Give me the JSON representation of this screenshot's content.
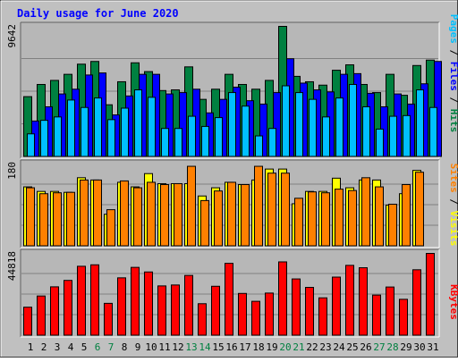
{
  "chart_data": {
    "type": "bar",
    "title": "Daily usage for June 2020",
    "categories": [
      "1",
      "2",
      "3",
      "4",
      "5",
      "6",
      "7",
      "8",
      "9",
      "10",
      "11",
      "12",
      "13",
      "14",
      "15",
      "16",
      "17",
      "18",
      "19",
      "20",
      "21",
      "22",
      "23",
      "24",
      "25",
      "26",
      "27",
      "28",
      "29",
      "30",
      "31"
    ],
    "weekend_days": [
      "6",
      "7",
      "13",
      "14",
      "20",
      "21",
      "27",
      "28"
    ],
    "panels": [
      {
        "id": "hits",
        "y_max_label": "9642",
        "ylim": [
          0,
          9642
        ],
        "series": [
          {
            "name": "Hits",
            "color": "#008040",
            "values": [
              4450,
              5350,
              5650,
              6100,
              6850,
              7050,
              3850,
              5550,
              6950,
              6300,
              4900,
              4950,
              6650,
              4250,
              5000,
              6100,
              5350,
              5000,
              5650,
              9642,
              5950,
              5550,
              5300,
              6400,
              6800,
              5350,
              4750,
              6100,
              4550,
              6750,
              7150
            ]
          },
          {
            "name": "Files",
            "color": "#0000ff",
            "values": [
              2650,
              3700,
              4650,
              5000,
              6050,
              6200,
              3100,
              4500,
              6100,
              6100,
              4650,
              4750,
              5000,
              3250,
              4250,
              5150,
              4150,
              3900,
              4750,
              7250,
              5450,
              4950,
              4800,
              6100,
              6150,
              4700,
              3700,
              4650,
              3900,
              5400,
              7050
            ]
          },
          {
            "name": "Pages",
            "color": "#00c0ff",
            "values": [
              1700,
              2700,
              2950,
              4200,
              3650,
              4350,
              2750,
              3600,
              4950,
              4400,
              2100,
              2100,
              3000,
              2250,
              2900,
              4750,
              3750,
              1550,
              2100,
              5250,
              4750,
              4250,
              2950,
              4350,
              5350,
              3700,
              2050,
              3000,
              3050,
              4950,
              3650
            ]
          }
        ]
      },
      {
        "id": "visits",
        "y_max_label": "180",
        "ylim": [
          0,
          180
        ],
        "series": [
          {
            "name": "Visits",
            "color": "#ffff00",
            "values": [
              130,
              120,
              120,
              118,
              150,
              145,
              70,
              140,
              130,
              159,
              137,
              137,
              137,
              110,
              128,
              140,
              135,
              145,
              169,
              169,
              93,
              120,
              120,
              149,
              128,
              145,
              145,
              90,
              115,
              166,
              0
            ]
          },
          {
            "name": "Sites",
            "color": "#ff8000",
            "values": [
              128,
              115,
              117,
              118,
              145,
              145,
              80,
              143,
              128,
              140,
              135,
              137,
              175,
              100,
              121,
              140,
              135,
              175,
              160,
              160,
              105,
              119,
              117,
              125,
              122,
              150,
              130,
              92,
              135,
              162,
              0
            ]
          }
        ]
      },
      {
        "id": "kbytes",
        "y_max_label": "44818",
        "ylim": [
          0,
          44818
        ],
        "series": [
          {
            "name": "KBytes",
            "color": "#ff0000",
            "values": [
              15500,
              21600,
              26600,
              30100,
              37800,
              38600,
              17600,
              31500,
              37200,
              34700,
              27100,
              27600,
              32800,
              17400,
              26900,
              39400,
              23000,
              18700,
              23200,
              40200,
              30900,
              26300,
              20600,
              31900,
              38300,
              37000,
              22100,
              26500,
              19800,
              35900,
              44818
            ]
          }
        ]
      }
    ],
    "side_labels": {
      "top": [
        {
          "text": "Pages",
          "color": "#00c0ff"
        },
        {
          "text": " / ",
          "color": "#000000"
        },
        {
          "text": "Files",
          "color": "#0000ff"
        },
        {
          "text": " / ",
          "color": "#000000"
        },
        {
          "text": "Hits",
          "color": "#008040"
        }
      ],
      "middle": [
        {
          "text": "Sites",
          "color": "#ff8000"
        },
        {
          "text": " / ",
          "color": "#000000"
        },
        {
          "text": "Visits",
          "color": "#ffff00"
        }
      ],
      "bottom": [
        {
          "text": "KBytes",
          "color": "#ff0000"
        }
      ]
    },
    "colors": {
      "background": "#c0c0c0",
      "panel_background": "#b7b7b7",
      "title": "#0000ff",
      "weekday_label": "#000000",
      "weekend_label": "#008040"
    }
  }
}
